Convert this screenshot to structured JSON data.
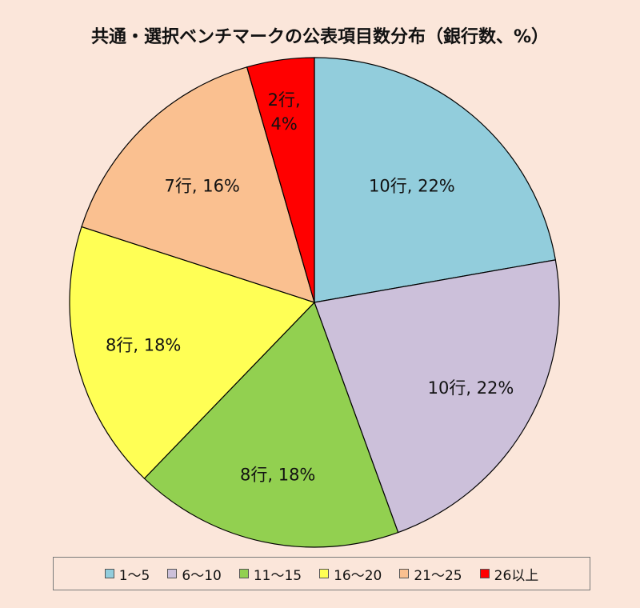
{
  "chart_data": {
    "type": "pie",
    "title": "共通・選択ベンチマークの公表項目数分布（銀行数、%）",
    "categories": [
      "1～5",
      "6～10",
      "11～15",
      "16～20",
      "21～25",
      "26以上"
    ],
    "values": [
      10,
      10,
      8,
      8,
      7,
      2
    ],
    "percents": [
      22,
      22,
      18,
      18,
      16,
      4
    ],
    "data_labels": [
      "10行, 22%",
      "10行, 22%",
      "8行, 18%",
      "8行, 18%",
      "7行, 16%",
      "2行,\n4%"
    ],
    "colors": [
      "#92cddc",
      "#ccc0da",
      "#92d050",
      "#ffff55",
      "#fac090",
      "#ff0000"
    ],
    "start": "12 o'clock",
    "direction": "clockwise",
    "legend_position": "bottom"
  }
}
